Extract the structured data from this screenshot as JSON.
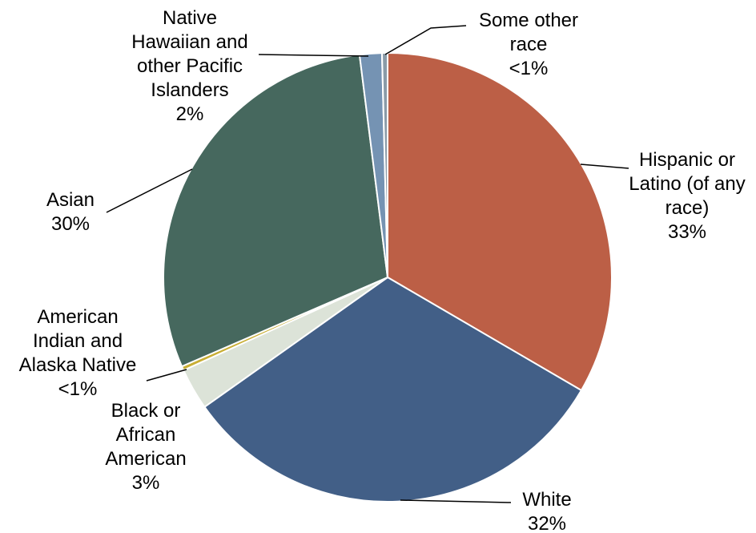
{
  "chart_data": {
    "type": "pie",
    "title": "",
    "start_angle": "12 o'clock",
    "direction": "clockwise",
    "slices": [
      {
        "label_lines": [
          "Hispanic or",
          "Latino (of any",
          "race)"
        ],
        "value_label": "33%",
        "value": 33.4,
        "color": "#BC5F46"
      },
      {
        "label_lines": [
          "White"
        ],
        "value_label": "32%",
        "value": 31.8,
        "color": "#425F87"
      },
      {
        "label_lines": [
          "Black or",
          "African",
          "American"
        ],
        "value_label": "3%",
        "value": 3.0,
        "color": "#DCE3D8"
      },
      {
        "label_lines": [
          "American",
          "Indian and",
          "Alaska Native"
        ],
        "value_label": "<1%",
        "value": 0.3,
        "color": "#C8AE34"
      },
      {
        "label_lines": [
          "Asian"
        ],
        "value_label": "30%",
        "value": 29.5,
        "color": "#46685E"
      },
      {
        "label_lines": [
          "Native",
          "Hawaiian and",
          "other Pacific",
          "Islanders"
        ],
        "value_label": "2%",
        "value": 1.6,
        "color": "#7593B3"
      },
      {
        "label_lines": [
          "Some other",
          "race"
        ],
        "value_label": "<1%",
        "value": 0.4,
        "color": "#8A9BA8"
      }
    ]
  }
}
